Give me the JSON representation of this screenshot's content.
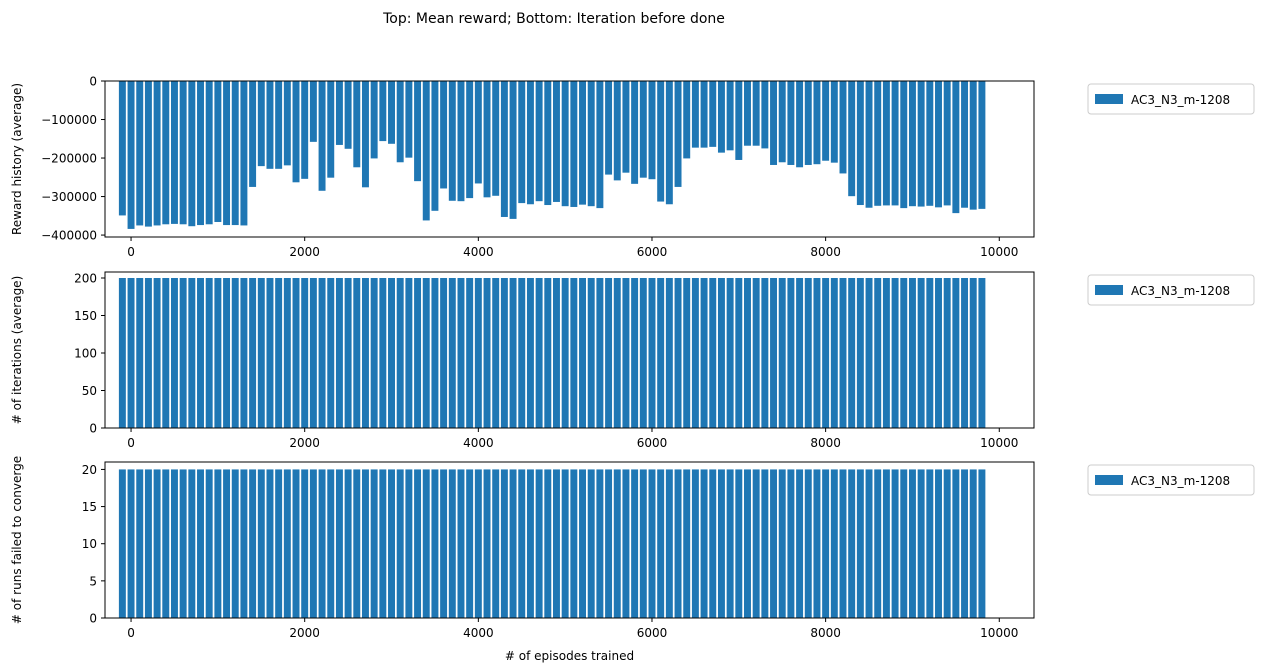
{
  "suptitle": "Top: Mean reward; Bottom: Iteration before done",
  "colors": {
    "bar": "#1f77b4",
    "axis": "#000000",
    "background": "#ffffff"
  },
  "chart_data": [
    {
      "type": "bar",
      "xlabel": "",
      "ylabel": "Reward history (average)",
      "xlim": [
        -300,
        10400
      ],
      "ylim": [
        -405000,
        0
      ],
      "xticks": [
        0,
        2000,
        4000,
        6000,
        8000,
        10000
      ],
      "yticks": [
        -400000,
        -300000,
        -200000,
        -100000,
        0
      ],
      "legend": "outside-right-top",
      "bar_width": 80,
      "x_start": -100,
      "x_step": 100,
      "series": [
        {
          "name": "AC3_N3_m-1208",
          "values": [
            -349000,
            -384000,
            -375000,
            -378000,
            -375000,
            -372000,
            -371000,
            -372000,
            -377000,
            -374000,
            -372000,
            -366000,
            -374000,
            -374000,
            -375000,
            -275000,
            -221000,
            -228000,
            -228000,
            -219000,
            -263000,
            -254000,
            -158000,
            -285000,
            -251000,
            -166000,
            -176000,
            -224000,
            -276000,
            -201000,
            -156000,
            -163000,
            -211000,
            -199000,
            -260000,
            -362000,
            -337000,
            -279000,
            -311000,
            -312000,
            -304000,
            -266000,
            -302000,
            -298000,
            -353000,
            -358000,
            -317000,
            -320000,
            -312000,
            -322000,
            -314000,
            -325000,
            -327000,
            -321000,
            -325000,
            -330000,
            -243000,
            -258000,
            -238000,
            -267000,
            -251000,
            -255000,
            -313000,
            -320000,
            -275000,
            -201000,
            -173000,
            -173000,
            -171000,
            -186000,
            -180000,
            -205000,
            -168000,
            -168000,
            -175000,
            -218000,
            -211000,
            -218000,
            -224000,
            -218000,
            -216000,
            -207000,
            -212000,
            -240000,
            -299000,
            -322000,
            -329000,
            -324000,
            -323000,
            -323000,
            -330000,
            -325000,
            -326000,
            -324000,
            -328000,
            -323000,
            -343000,
            -329000,
            -334000,
            -332000
          ]
        }
      ]
    },
    {
      "type": "bar",
      "xlabel": "",
      "ylabel": "# of iterations (average)",
      "xlim": [
        -300,
        10400
      ],
      "ylim": [
        0,
        208
      ],
      "xticks": [
        0,
        2000,
        4000,
        6000,
        8000,
        10000
      ],
      "yticks": [
        0,
        50,
        100,
        150,
        200
      ],
      "legend": "outside-right-top",
      "bar_width": 80,
      "x_start": -100,
      "x_step": 100,
      "series": [
        {
          "name": "AC3_N3_m-1208",
          "values": [
            200,
            200,
            200,
            200,
            200,
            200,
            200,
            200,
            200,
            200,
            200,
            200,
            200,
            200,
            200,
            200,
            200,
            200,
            200,
            200,
            200,
            200,
            200,
            200,
            200,
            200,
            200,
            200,
            200,
            200,
            200,
            200,
            200,
            200,
            200,
            200,
            200,
            200,
            200,
            200,
            200,
            200,
            200,
            200,
            200,
            200,
            200,
            200,
            200,
            200,
            200,
            200,
            200,
            200,
            200,
            200,
            200,
            200,
            200,
            200,
            200,
            200,
            200,
            200,
            200,
            200,
            200,
            200,
            200,
            200,
            200,
            200,
            200,
            200,
            200,
            200,
            200,
            200,
            200,
            200,
            200,
            200,
            200,
            200,
            200,
            200,
            200,
            200,
            200,
            200,
            200,
            200,
            200,
            200,
            200,
            200,
            200,
            200,
            200,
            200
          ]
        }
      ]
    },
    {
      "type": "bar",
      "xlabel": "# of episodes trained",
      "ylabel": "# of runs failed to converge",
      "xlim": [
        -300,
        10400
      ],
      "ylim": [
        0,
        21
      ],
      "xticks": [
        0,
        2000,
        4000,
        6000,
        8000,
        10000
      ],
      "yticks": [
        0,
        5,
        10,
        15,
        20
      ],
      "legend": "outside-right-top",
      "bar_width": 80,
      "x_start": -100,
      "x_step": 100,
      "series": [
        {
          "name": "AC3_N3_m-1208",
          "values": [
            20,
            20,
            20,
            20,
            20,
            20,
            20,
            20,
            20,
            20,
            20,
            20,
            20,
            20,
            20,
            20,
            20,
            20,
            20,
            20,
            20,
            20,
            20,
            20,
            20,
            20,
            20,
            20,
            20,
            20,
            20,
            20,
            20,
            20,
            20,
            20,
            20,
            20,
            20,
            20,
            20,
            20,
            20,
            20,
            20,
            20,
            20,
            20,
            20,
            20,
            20,
            20,
            20,
            20,
            20,
            20,
            20,
            20,
            20,
            20,
            20,
            20,
            20,
            20,
            20,
            20,
            20,
            20,
            20,
            20,
            20,
            20,
            20,
            20,
            20,
            20,
            20,
            20,
            20,
            20,
            20,
            20,
            20,
            20,
            20,
            20,
            20,
            20,
            20,
            20,
            20,
            20,
            20,
            20,
            20,
            20,
            20,
            20,
            20,
            20
          ]
        }
      ]
    }
  ]
}
